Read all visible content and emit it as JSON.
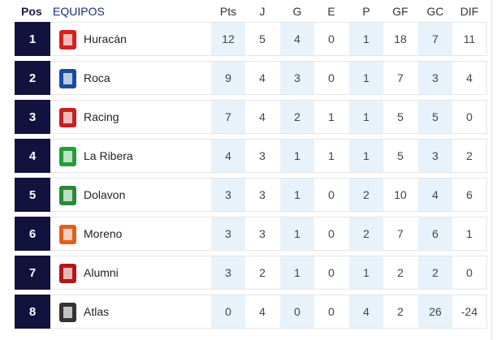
{
  "header": {
    "pos": "Pos",
    "team": "EQUIPOS",
    "cols": [
      "Pts",
      "J",
      "G",
      "E",
      "P",
      "GF",
      "GC",
      "DIF"
    ]
  },
  "rows": [
    {
      "pos": "1",
      "team": "Huracán",
      "logo": "huracan-logo",
      "color": "#d42020",
      "stats": [
        "12",
        "5",
        "4",
        "0",
        "1",
        "18",
        "7",
        "11"
      ]
    },
    {
      "pos": "2",
      "team": "Roca",
      "logo": "roca-logo",
      "color": "#1a4aa0",
      "stats": [
        "9",
        "4",
        "3",
        "0",
        "1",
        "7",
        "3",
        "4"
      ]
    },
    {
      "pos": "3",
      "team": "Racing",
      "logo": "racing-logo",
      "color": "#c82020",
      "stats": [
        "7",
        "4",
        "2",
        "1",
        "1",
        "5",
        "5",
        "0"
      ]
    },
    {
      "pos": "4",
      "team": "La Ribera",
      "logo": "la-ribera-logo",
      "color": "#2a9a3a",
      "stats": [
        "4",
        "3",
        "1",
        "1",
        "1",
        "5",
        "3",
        "2"
      ]
    },
    {
      "pos": "5",
      "team": "Dolavon",
      "logo": "dolavon-logo",
      "color": "#2a8a3a",
      "stats": [
        "3",
        "3",
        "1",
        "0",
        "2",
        "10",
        "4",
        "6"
      ]
    },
    {
      "pos": "6",
      "team": "Moreno",
      "logo": "moreno-logo",
      "color": "#e06020",
      "stats": [
        "3",
        "3",
        "1",
        "0",
        "2",
        "7",
        "6",
        "1"
      ]
    },
    {
      "pos": "7",
      "team": "Alumni",
      "logo": "alumni-logo",
      "color": "#b01818",
      "stats": [
        "3",
        "2",
        "1",
        "0",
        "1",
        "2",
        "2",
        "0"
      ]
    },
    {
      "pos": "8",
      "team": "Atlas",
      "logo": "atlas-logo",
      "color": "#333333",
      "stats": [
        "0",
        "4",
        "0",
        "0",
        "4",
        "2",
        "26",
        "-24"
      ]
    }
  ]
}
